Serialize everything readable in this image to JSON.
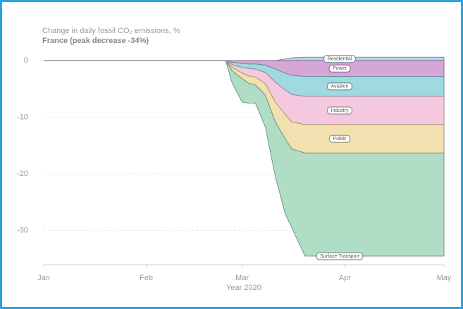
{
  "chart_data": {
    "type": "area",
    "title": "Change in daily fossil CO₂ emissions, %",
    "subtitle": "France (peak decrease -34%)",
    "x_label": "Year 2020",
    "x": [
      0,
      55,
      57,
      60,
      62,
      64,
      67,
      70,
      73,
      75,
      79,
      121
    ],
    "xlim": [
      0,
      121
    ],
    "xticks": [
      {
        "value": 0,
        "label": "Jan"
      },
      {
        "value": 31,
        "label": "Feb"
      },
      {
        "value": 60,
        "label": "Mar"
      },
      {
        "value": 91,
        "label": "Apr"
      },
      {
        "value": 121,
        "label": "May"
      }
    ],
    "ylim": [
      -36,
      2
    ],
    "yticks": [
      0,
      -10,
      -20,
      -30
    ],
    "grid": true,
    "stacked": true,
    "series": [
      {
        "name": "Residential",
        "color": "#a9cbe8",
        "values": [
          0,
          0,
          0,
          0,
          0,
          0,
          0,
          0,
          0.3,
          0.5,
          0.6,
          0.6
        ]
      },
      {
        "name": "Power",
        "color": "#cf98cf",
        "values": [
          0,
          0,
          -0.3,
          -0.5,
          -0.6,
          -0.6,
          -0.8,
          -1.5,
          -2.2,
          -2.6,
          -2.8,
          -2.8
        ]
      },
      {
        "name": "Aviation",
        "color": "#8fd2da",
        "values": [
          0,
          0,
          -0.4,
          -0.7,
          -0.8,
          -0.9,
          -1.3,
          -2.3,
          -3.0,
          -3.4,
          -3.5,
          -3.5
        ]
      },
      {
        "name": "Industry",
        "color": "#f2c0db",
        "values": [
          0,
          0,
          -0.5,
          -1.0,
          -1.3,
          -1.4,
          -2.0,
          -3.5,
          -4.3,
          -4.8,
          -5.0,
          -5.0
        ]
      },
      {
        "name": "Public",
        "color": "#f0daa2",
        "values": [
          0,
          0,
          -0.6,
          -1.0,
          -1.3,
          -1.4,
          -2.0,
          -3.5,
          -4.3,
          -4.8,
          -5.0,
          -5.0
        ]
      },
      {
        "name": "Surface Transport",
        "color": "#a2d7bb",
        "values": [
          0,
          0,
          -2.2,
          -4.1,
          -3.5,
          -3.2,
          -5.6,
          -9.6,
          -13.2,
          -13.9,
          -18.2,
          -18.2
        ]
      }
    ]
  }
}
